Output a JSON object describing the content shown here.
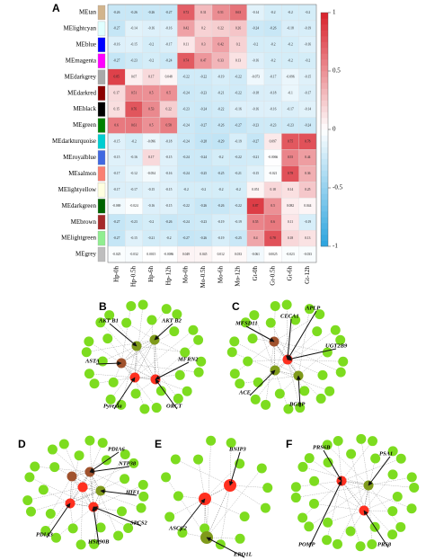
{
  "chart_data": {
    "type": "heatmap",
    "panel": "A",
    "rows": [
      "MEtan",
      "MElightcyan",
      "MEblue",
      "MEmagenta",
      "MEdarkgrey",
      "MEdarkred",
      "MEblack",
      "MEgreen",
      "MEdarkturquoise",
      "MEroyalblue",
      "MEsalmon",
      "MElightyellow",
      "MEdarkgreen",
      "MEbrown",
      "MElightgreen",
      "MEgrey"
    ],
    "row_colors": [
      "#d2b48c",
      "#e0ffff",
      "#0000ff",
      "#ff00ff",
      "#a9a9a9",
      "#8b0000",
      "#000000",
      "#008000",
      "#00ced1",
      "#4169e1",
      "#fa8072",
      "#ffffe0",
      "#006400",
      "#a52a2a",
      "#90ee90",
      "#bebebe"
    ],
    "columns": [
      "Hp-0h",
      "Hp-0.5h",
      "Hp-6h",
      "Hp-12h",
      "Mo-0h",
      "Mo-0.5h",
      "Mo-6h",
      "Mo-12h",
      "Gt-0h",
      "Gt-0.5h",
      "Gt-6h",
      "Gt-12h"
    ],
    "values": [
      [
        -0.26,
        -0.26,
        -0.26,
        -0.27,
        0.72,
        0.31,
        0.51,
        0.63,
        -0.14,
        -0.2,
        -0.2,
        -0.2
      ],
      [
        -0.27,
        -0.14,
        -0.16,
        -0.16,
        0.42,
        0.2,
        0.22,
        0.26,
        -0.24,
        -0.26,
        -0.18,
        -0.19
      ],
      [
        -0.16,
        -0.15,
        -0.2,
        -0.17,
        0.11,
        0.3,
        0.42,
        0.2,
        -0.2,
        -0.2,
        -0.2,
        -0.16
      ],
      [
        -0.27,
        -0.23,
        -0.2,
        -0.24,
        0.74,
        0.47,
        0.33,
        0.13,
        -0.16,
        -0.2,
        -0.2,
        -0.2
      ],
      [
        0.85,
        0.07,
        0.17,
        0.048,
        -0.22,
        -0.22,
        -0.19,
        -0.22,
        -0.073,
        -0.17,
        -0.096,
        -0.15
      ],
      [
        0.17,
        0.51,
        0.5,
        0.5,
        -0.24,
        -0.23,
        -0.21,
        -0.22,
        -0.18,
        -0.18,
        -0.1,
        -0.17
      ],
      [
        0.15,
        0.76,
        0.53,
        0.22,
        -0.23,
        -0.24,
        -0.22,
        -0.16,
        -0.16,
        -0.16,
        -0.17,
        -0.14
      ],
      [
        0.6,
        0.61,
        0.5,
        0.58,
        -0.24,
        -0.27,
        -0.26,
        -0.27,
        -0.23,
        -0.23,
        -0.23,
        -0.24
      ],
      [
        -0.15,
        -0.2,
        -0.096,
        -0.18,
        -0.24,
        -0.28,
        -0.29,
        -0.19,
        -0.27,
        0.097,
        0.75,
        0.78
      ],
      [
        -0.15,
        -0.16,
        0.17,
        -0.15,
        -0.24,
        -0.24,
        -0.2,
        -0.22,
        -0.21,
        -0.0066,
        0.55,
        0.44
      ],
      [
        -0.17,
        -0.12,
        -0.054,
        -0.16,
        -0.24,
        -0.25,
        -0.25,
        -0.21,
        -0.15,
        -0.021,
        0.78,
        0.36
      ],
      [
        -0.17,
        -0.17,
        -0.15,
        -0.15,
        -0.2,
        -0.2,
        -0.2,
        -0.2,
        0.051,
        0.18,
        0.14,
        0.25
      ],
      [
        -0.069,
        -0.024,
        -0.16,
        -0.15,
        -0.22,
        -0.26,
        -0.26,
        -0.22,
        0.87,
        0.5,
        0.082,
        0.044
      ],
      [
        -0.27,
        -0.23,
        -0.2,
        -0.26,
        -0.24,
        -0.23,
        -0.19,
        -0.19,
        0.55,
        0.6,
        0.11,
        -0.19
      ],
      [
        -0.27,
        -0.15,
        -0.21,
        -0.2,
        -0.27,
        -0.26,
        -0.19,
        -0.25,
        0.4,
        0.78,
        0.18,
        0.13
      ],
      [
        -0.025,
        -0.032,
        0.0015,
        -0.0086,
        0.049,
        0.045,
        0.012,
        0.033,
        -0.061,
        0.0025,
        -0.023,
        -0.033
      ]
    ],
    "zlim": [
      -1,
      1
    ],
    "zticks": [
      1,
      0.5,
      0,
      -0.5,
      -1
    ],
    "colors": {
      "low": "#2aa3de",
      "mid": "#ffffff",
      "high": "#d8202a"
    }
  },
  "networks": [
    {
      "letter": "B",
      "genes": [
        "AKT B1",
        "AKT B2",
        "MFRN2",
        "ASTA",
        "Pyrexia",
        "ORCT"
      ]
    },
    {
      "letter": "C",
      "genes": [
        "APLP",
        "CECA1",
        "MFSD11",
        "UGT2B9",
        "ACE",
        "BGBP"
      ]
    },
    {
      "letter": "D",
      "genes": [
        "PDIA6",
        "NTP38",
        "HIF1",
        "SPCS2",
        "HSP90B",
        "PDIA3"
      ]
    },
    {
      "letter": "E",
      "genes": [
        "BNIP3",
        "ASCC2",
        "ERO1L"
      ]
    },
    {
      "letter": "F",
      "genes": [
        "PRS6B",
        "PSA1",
        "POMP",
        "PRS8"
      ]
    }
  ]
}
